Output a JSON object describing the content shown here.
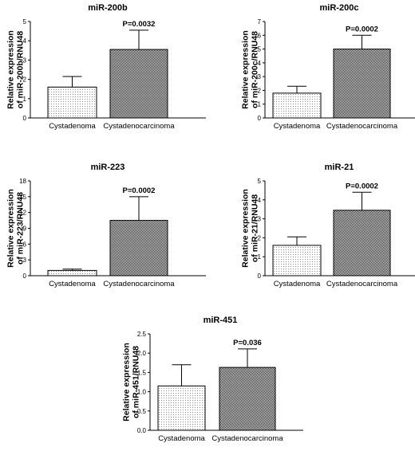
{
  "chart_data": [
    {
      "type": "bar",
      "title": "miR-200b",
      "ylabel_lines": [
        "Relative expression",
        "of miR-200b/RNU48"
      ],
      "categories": [
        "Cystadenoma",
        "Cystadenocarcinoma"
      ],
      "values": [
        1.6,
        3.55
      ],
      "errors": [
        0.55,
        1.0
      ],
      "ylim": [
        0,
        5
      ],
      "yticks": [
        0,
        1,
        2,
        3,
        4,
        5
      ],
      "ytick_labels": [
        "0",
        "1",
        "2",
        "3",
        "4",
        "5"
      ],
      "annotation": "P=0.0032"
    },
    {
      "type": "bar",
      "title": "miR-200c",
      "ylabel_lines": [
        "Relative expression",
        "of miR-200c/RNU48"
      ],
      "categories": [
        "Cystadenoma",
        "Cystadenocarcinoma"
      ],
      "values": [
        1.8,
        5.0
      ],
      "errors": [
        0.5,
        1.0
      ],
      "ylim": [
        0,
        7
      ],
      "yticks": [
        0,
        1,
        2,
        3,
        4,
        5,
        6,
        7
      ],
      "ytick_labels": [
        "0",
        "1",
        "2",
        "3",
        "4",
        "5",
        "6",
        "7"
      ],
      "annotation": "P=0.0002"
    },
    {
      "type": "bar",
      "title": "miR-223",
      "ylabel_lines": [
        "Relative expression",
        "of miR-223/RNU48"
      ],
      "categories": [
        "Cystadenoma",
        "Cystadenocarcinoma"
      ],
      "values": [
        1.0,
        10.5
      ],
      "errors": [
        0.25,
        4.5
      ],
      "ylim": [
        0,
        18
      ],
      "yticks": [
        0,
        3,
        6,
        9,
        12,
        15,
        18
      ],
      "ytick_labels": [
        "0",
        "3",
        "6",
        "9",
        "12",
        "15",
        "18"
      ],
      "annotation": "P=0.0002"
    },
    {
      "type": "bar",
      "title": "miR-21",
      "ylabel_lines": [
        "Relative expression",
        "of miR-21/RNU48"
      ],
      "categories": [
        "Cystadenoma",
        "Cystadenocarcinoma"
      ],
      "values": [
        1.6,
        3.45
      ],
      "errors": [
        0.45,
        0.95
      ],
      "ylim": [
        0,
        5
      ],
      "yticks": [
        0,
        1,
        2,
        3,
        4,
        5
      ],
      "ytick_labels": [
        "0",
        "1",
        "2",
        "3",
        "4",
        "5"
      ],
      "annotation": "P=0.0002"
    },
    {
      "type": "bar",
      "title": "miR-451",
      "ylabel_lines": [
        "Relative expression",
        "of miR-451/RNU48"
      ],
      "categories": [
        "Cystadenoma",
        "Cystadenocarcinoma"
      ],
      "values": [
        1.15,
        1.63
      ],
      "errors": [
        0.55,
        0.48
      ],
      "ylim": [
        0,
        2.5
      ],
      "yticks": [
        0,
        0.5,
        1.0,
        1.5,
        2.0,
        2.5
      ],
      "ytick_labels": [
        "0.0",
        "0.5",
        "1.0",
        "1.5",
        "2.0",
        "2.5"
      ],
      "annotation": "P=0.036"
    }
  ]
}
